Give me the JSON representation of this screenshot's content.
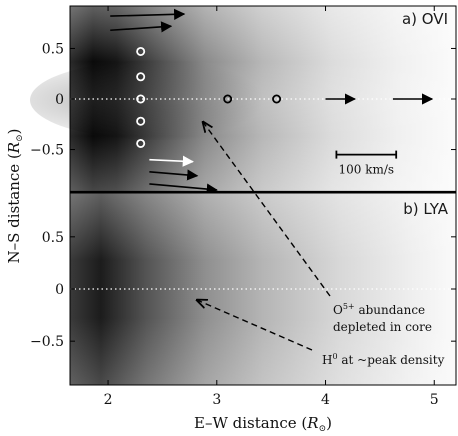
{
  "chart_data": [
    {
      "type": "heatmap",
      "panel_label": "a) OVI",
      "xlim": [
        1.65,
        5.2
      ],
      "ylim": [
        -0.92,
        0.92
      ],
      "description_of_values": "grayscale intensity, dark near the limb at low E-W distance, fading outward",
      "equator_line": {
        "y": 0,
        "style": "dotted",
        "color": "#ffffff"
      },
      "white_circles": [
        {
          "x": 2.3,
          "y": 0.47
        },
        {
          "x": 2.3,
          "y": 0.22
        },
        {
          "x": 2.3,
          "y": 0.0
        },
        {
          "x": 2.3,
          "y": -0.22
        },
        {
          "x": 2.3,
          "y": -0.44
        }
      ],
      "black_circles": [
        {
          "x": 3.1,
          "y": 0.0
        },
        {
          "x": 3.55,
          "y": 0.0
        }
      ],
      "black_arrows": [
        {
          "x0": 2.02,
          "y0": 0.82,
          "x1": 2.7,
          "y1": 0.84
        },
        {
          "x0": 2.02,
          "y0": 0.68,
          "x1": 2.58,
          "y1": 0.72
        },
        {
          "x0": 4.0,
          "y0": 0.0,
          "x1": 4.27,
          "y1": 0.0
        },
        {
          "x0": 4.62,
          "y0": 0.0,
          "x1": 4.98,
          "y1": 0.0
        },
        {
          "x0": 2.38,
          "y0": -0.72,
          "x1": 2.82,
          "y1": -0.76
        },
        {
          "x0": 2.38,
          "y0": -0.84,
          "x1": 3.0,
          "y1": -0.9
        }
      ],
      "white_arrows": [
        {
          "x0": 2.38,
          "y0": -0.6,
          "x1": 2.78,
          "y1": -0.62
        }
      ],
      "scale_bar": {
        "x0": 4.1,
        "x1": 4.65,
        "y": -0.55,
        "label": "100 km/s"
      },
      "yticks": [
        0.5,
        0,
        -0.5
      ],
      "ytick_labels": [
        "0.5",
        "0",
        "−0.5"
      ]
    },
    {
      "type": "heatmap",
      "panel_label": "b) LYA",
      "xlim": [
        1.65,
        5.2
      ],
      "ylim": [
        -0.92,
        0.92
      ],
      "description_of_values": "grayscale intensity, dark near the limb at low E-W distance, fading outward",
      "equator_line": {
        "y": 0,
        "style": "dotted",
        "color": "#ffffff"
      },
      "yticks": [
        0.5,
        0,
        -0.5
      ],
      "ytick_labels": [
        "0.5",
        "0",
        "−0.5"
      ],
      "xticks": [
        2,
        3,
        4,
        5
      ],
      "xtick_labels": [
        "2",
        "3",
        "4",
        "5"
      ]
    }
  ],
  "axes": {
    "xlabel_prefix": "E–W distance (",
    "xlabel_unit": "R",
    "xlabel_suffix": ")",
    "ylabel_prefix": "N–S distance (",
    "ylabel_unit": "R",
    "ylabel_suffix": ")",
    "sun_symbol": "⊙"
  },
  "annotations": {
    "note1_line1_base": "O",
    "note1_line1_sup": "5+",
    "note1_line1_rest": " abundance",
    "note1_line2": "depleted in core",
    "note2_base": "H",
    "note2_sup": "0",
    "note2_rest": " at ~peak density",
    "dashed_arrow_1": {
      "from": {
        "x": 4.0,
        "y": -0.79
      },
      "to": {
        "x": 2.8,
        "y": -0.26
      },
      "panel": "a-to-b"
    },
    "dashed_arrow_2": {
      "from": {
        "x": 3.85,
        "y": -0.5
      },
      "to": {
        "x": 2.8,
        "y": 0.1
      },
      "panel": "b"
    }
  }
}
